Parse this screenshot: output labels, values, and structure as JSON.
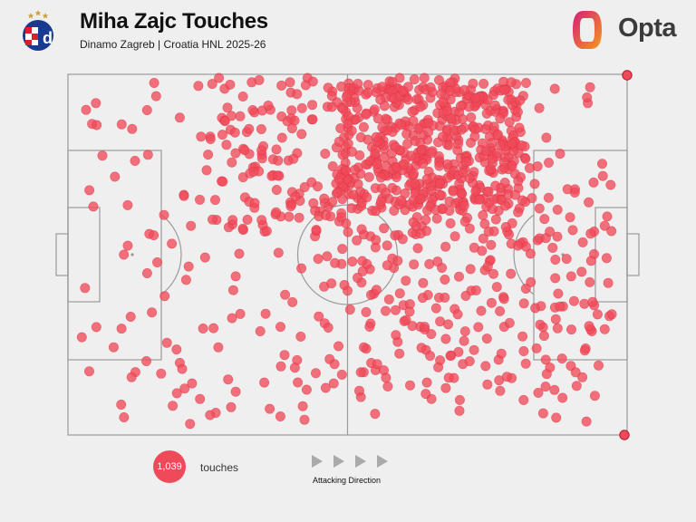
{
  "header": {
    "title": "Miha Zajc Touches",
    "subtitle": "Dinamo Zagreb | Croatia HNL 2025-26",
    "brand": "Opta",
    "crest_letter": "d"
  },
  "colors": {
    "touch": "#ef4a5a",
    "pitch_line": "#9a9a9a",
    "background": "#efefef",
    "brand_magenta": "#d81b7a",
    "brand_orange": "#f39b1b"
  },
  "footer": {
    "count": "1,039",
    "count_label": "touches",
    "direction_label": "Attacking Direction"
  },
  "chart_data": {
    "type": "scatter",
    "title": "Miha Zajc Touches",
    "pitch": "horizontal, full pitch, attacking left to right",
    "xlim": [
      0,
      100
    ],
    "ylim": [
      0,
      100
    ],
    "total_touches": 1039,
    "sample_points": [
      [
        5,
        92
      ],
      [
        12,
        76
      ],
      [
        20,
        88
      ],
      [
        28,
        96
      ],
      [
        32,
        84
      ],
      [
        40,
        90
      ],
      [
        46,
        78
      ],
      [
        52,
        88
      ],
      [
        58,
        96
      ],
      [
        62,
        90
      ],
      [
        68,
        82
      ],
      [
        74,
        94
      ],
      [
        80,
        90
      ],
      [
        88,
        78
      ],
      [
        94,
        70
      ],
      [
        10,
        50
      ],
      [
        15,
        34
      ],
      [
        22,
        58
      ],
      [
        30,
        44
      ],
      [
        38,
        30
      ],
      [
        45,
        62
      ],
      [
        50,
        40
      ],
      [
        55,
        52
      ],
      [
        60,
        36
      ],
      [
        66,
        60
      ],
      [
        72,
        46
      ],
      [
        78,
        30
      ],
      [
        84,
        54
      ],
      [
        90,
        44
      ],
      [
        96,
        58
      ],
      [
        20,
        20
      ],
      [
        30,
        12
      ],
      [
        42,
        8
      ],
      [
        55,
        18
      ],
      [
        65,
        10
      ],
      [
        75,
        14
      ],
      [
        85,
        6
      ],
      [
        92,
        16
      ]
    ]
  }
}
